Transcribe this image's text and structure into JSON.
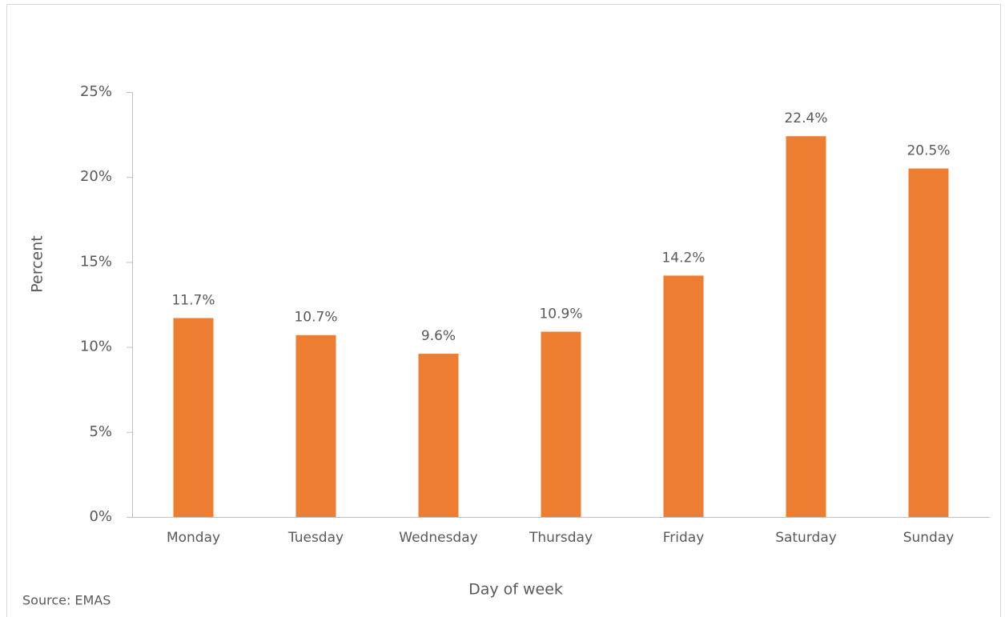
{
  "chart_data": {
    "type": "bar",
    "categories": [
      "Monday",
      "Tuesday",
      "Wednesday",
      "Thursday",
      "Friday",
      "Saturday",
      "Sunday"
    ],
    "values": [
      11.7,
      10.7,
      9.6,
      10.9,
      14.2,
      22.4,
      20.5
    ],
    "value_labels": [
      "11.7%",
      "10.7%",
      "9.6%",
      "10.9%",
      "14.2%",
      "22.4%",
      "20.5%"
    ],
    "color": "#ed7d31",
    "ylim": [
      0,
      25
    ],
    "yticks": [
      {
        "value": 0,
        "label": "0%"
      },
      {
        "value": 5,
        "label": "5%"
      },
      {
        "value": 10,
        "label": "10%"
      },
      {
        "value": 15,
        "label": "15%"
      },
      {
        "value": 20,
        "label": "20%"
      },
      {
        "value": 25,
        "label": "25%"
      }
    ],
    "grid": false,
    "ylabel": "Percent",
    "xlabel": "Day of week",
    "annotation": "Source: EMAS"
  }
}
